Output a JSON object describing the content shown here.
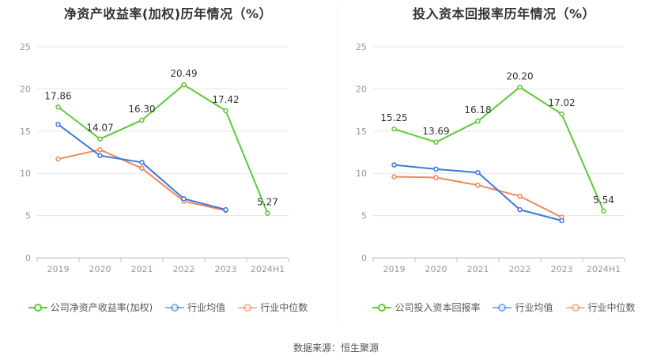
{
  "charts": [
    {
      "title": "净资产收益率(加权)历年情况（%）",
      "legend": [
        "公司净资产收益率(加权)",
        "行业均值",
        "行业中位数"
      ]
    },
    {
      "title": "投入资本回报率历年情况（%）",
      "legend": [
        "公司投入资本回报率",
        "行业均值",
        "行业中位数"
      ]
    }
  ],
  "source": "数据来源：恒生聚源",
  "colors": {
    "company": "#5ec935",
    "mean": "#3a78e0",
    "median": "#f0875c",
    "grid": "#e6e6e6",
    "axis": "#999999"
  },
  "chart_data": [
    {
      "type": "line",
      "title": "净资产收益率(加权)历年情况（%）",
      "categories": [
        "2019",
        "2020",
        "2021",
        "2022",
        "2023",
        "2024H1"
      ],
      "ylim": [
        0,
        25
      ],
      "yticks": [
        0,
        5,
        10,
        15,
        20,
        25
      ],
      "grid": true,
      "legend_position": "bottom",
      "series": [
        {
          "name": "公司净资产收益率(加权)",
          "values": [
            17.86,
            14.07,
            16.3,
            20.49,
            17.42,
            5.27
          ],
          "labels": [
            "17.86",
            "14.07",
            "16.30",
            "20.49",
            "17.42",
            "5.27"
          ]
        },
        {
          "name": "行业均值",
          "values": [
            15.8,
            12.1,
            11.3,
            7.0,
            5.7,
            null
          ]
        },
        {
          "name": "行业中位数",
          "values": [
            11.7,
            12.8,
            10.6,
            6.7,
            5.6,
            null
          ]
        }
      ]
    },
    {
      "type": "line",
      "title": "投入资本回报率历年情况（%）",
      "categories": [
        "2019",
        "2020",
        "2021",
        "2022",
        "2023",
        "2024H1"
      ],
      "ylim": [
        0,
        25
      ],
      "yticks": [
        0,
        5,
        10,
        15,
        20,
        25
      ],
      "grid": true,
      "legend_position": "bottom",
      "series": [
        {
          "name": "公司投入资本回报率",
          "values": [
            15.25,
            13.69,
            16.18,
            20.2,
            17.02,
            5.54
          ],
          "labels": [
            "15.25",
            "13.69",
            "16.18",
            "20.20",
            "17.02",
            "5.54"
          ]
        },
        {
          "name": "行业均值",
          "values": [
            11.0,
            10.5,
            10.1,
            5.7,
            4.4,
            null
          ]
        },
        {
          "name": "行业中位数",
          "values": [
            9.6,
            9.5,
            8.6,
            7.3,
            4.8,
            null
          ]
        }
      ]
    }
  ]
}
